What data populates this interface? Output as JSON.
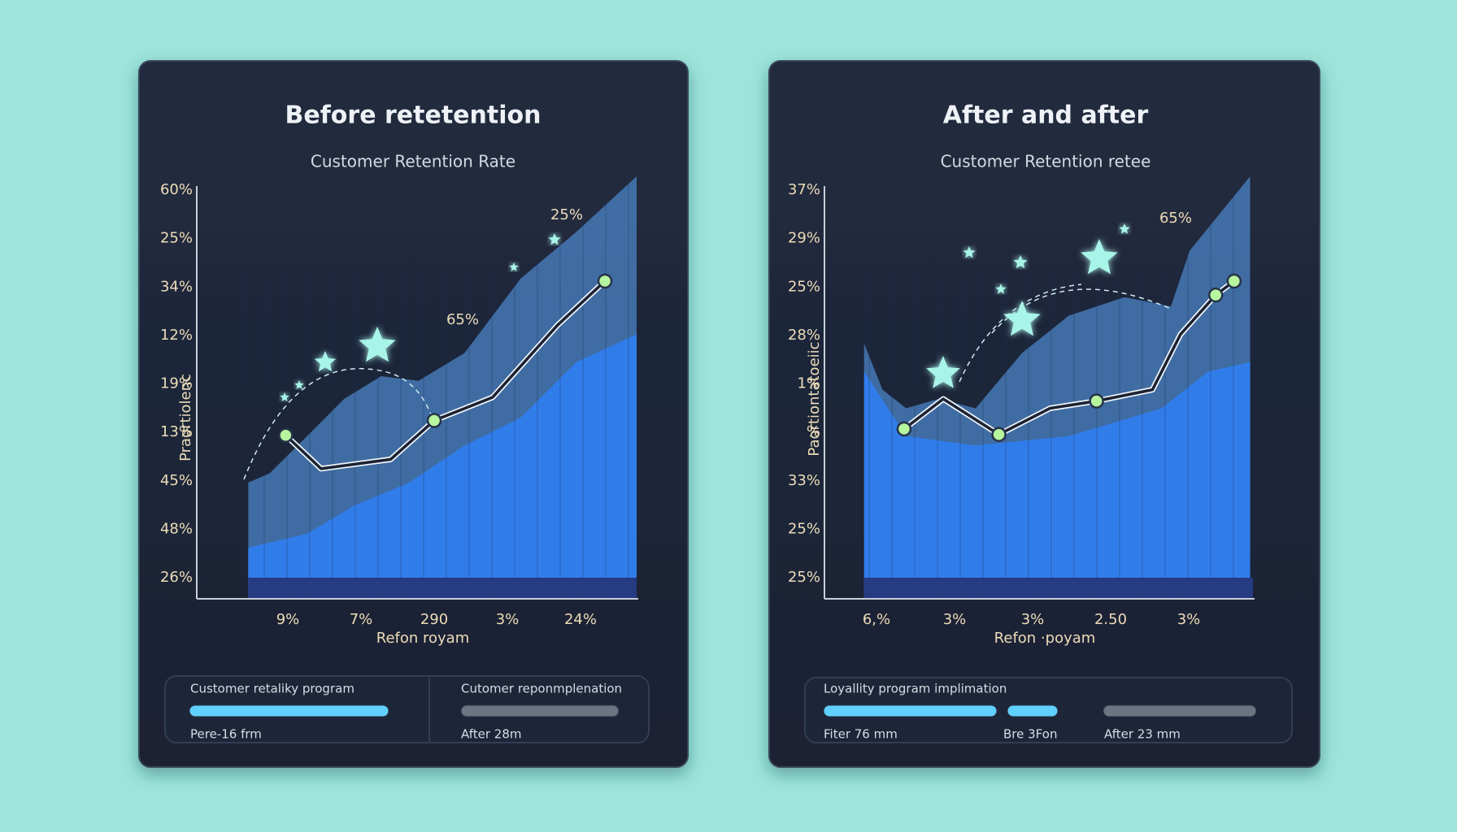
{
  "chart_data": [
    {
      "type": "line",
      "title": "Before retetention",
      "subtitle": "Customer Retention Rate",
      "y_label": "Praortiolenc",
      "x_label": "Refon royam",
      "ylabels": [
        "60%",
        "25%",
        "34%",
        "12%",
        "19%",
        "13%",
        "45%",
        "48%",
        "26%"
      ],
      "categories": [
        "9%",
        "7%",
        "290",
        "3%",
        "24%"
      ],
      "annotations": [
        "25%",
        "65%"
      ],
      "xlim": [
        0,
        100
      ],
      "ylim": [
        0,
        100
      ],
      "grid": true,
      "series": [
        {
          "kind": "area",
          "color": "#4b84c6",
          "x": [
            5.6,
            10.8,
            19.9,
            28.9,
            37.9,
            47,
            58.2,
            71.8,
            85.3,
            100
          ],
          "values": [
            27.5,
            29.7,
            38.5,
            47.3,
            52.7,
            51.6,
            58.2,
            75.8,
            86.8,
            100
          ]
        },
        {
          "kind": "area",
          "color": "#2f80f2",
          "x": [
            5.6,
            19.9,
            31.2,
            44.7,
            58.2,
            71.8,
            85.3,
            100
          ],
          "values": [
            12.1,
            15.4,
            22,
            27.5,
            36.3,
            42.9,
            56,
            62.6
          ]
        },
        {
          "kind": "line",
          "color": "#1b2233",
          "x": [
            14.7,
            23.3,
            40.2,
            50.8,
            65,
            80.8,
            92.3
          ],
          "values": [
            38.7,
            30.8,
            33,
            42.2,
            47.7,
            64.8,
            75.2
          ],
          "markers": [
            0,
            3,
            6
          ]
        }
      ],
      "footer": [
        "Customer retaliky program",
        "Pere-16 frm",
        "Cutomer reponmplenation",
        "After 28m"
      ]
    },
    {
      "type": "line",
      "title": "After and after",
      "subtitle": "Customer Retention retee",
      "y_label": "Paortiontatoeiic",
      "x_label": "Refon ·poyam",
      "ylabels": [
        "37%",
        "29%",
        "25%",
        "28%",
        "1%",
        "%",
        "33%",
        "25%",
        "25%"
      ],
      "categories": [
        "6,%",
        "3%",
        "3%",
        "2.50",
        "3%"
      ],
      "annotations": [
        "65%"
      ],
      "xlim": [
        0,
        100
      ],
      "ylim": [
        0,
        100
      ],
      "grid": true,
      "series": [
        {
          "kind": "area",
          "color": "#4b84c6",
          "x": [
            2.8,
            7.4,
            13.3,
            21.4,
            30.7,
            42.3,
            53.95,
            67.9,
            79.5,
            84.2,
            99.3
          ],
          "values": [
            60.4,
            49.5,
            45.1,
            47.3,
            45.1,
            58.2,
            67,
            71.4,
            69.2,
            82.4,
            100
          ]
        },
        {
          "kind": "area",
          "color": "#2f80f2",
          "x": [
            2.8,
            13.3,
            30.7,
            53.95,
            77.2,
            88.8,
            99.3
          ],
          "values": [
            53.8,
            38.5,
            36.3,
            38.5,
            45.1,
            53.8,
            56
          ]
        },
        {
          "kind": "line",
          "color": "#1b2233",
          "x": [
            12.8,
            22.6,
            36.5,
            49.3,
            60.9,
            74.9,
            81.9,
            90.7,
            95.3
          ],
          "values": [
            40.2,
            47.3,
            38.9,
            45.1,
            46.8,
            49.5,
            62.6,
            71.9,
            75.2
          ],
          "markers": [
            0,
            2,
            4,
            7,
            8
          ]
        }
      ],
      "footer": [
        "Loyallity program implimation",
        "Fiter 76 mm",
        "Bre 3Fon",
        "After 23 mm"
      ]
    }
  ]
}
